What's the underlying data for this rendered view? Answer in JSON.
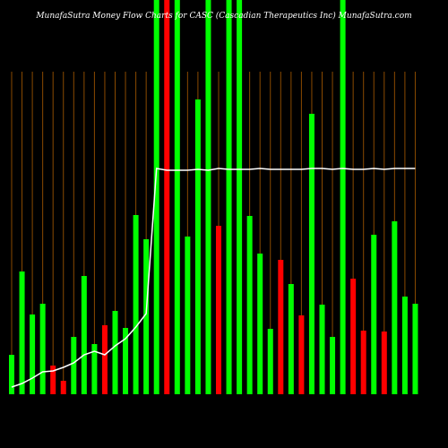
{
  "chart_data": {
    "type": "bar",
    "title": "MunafaSutra  Money Flow  Charts for CASC  (Cascadian  Therapeutics Inc) MunafaSutra.com",
    "ylim": [
      0,
      440
    ],
    "values": [
      44,
      137,
      89,
      101,
      32,
      15,
      64,
      132,
      56,
      77,
      93,
      74,
      200,
      173,
      440,
      440,
      440,
      176,
      329,
      440,
      188,
      440,
      440,
      199,
      157,
      73,
      150,
      123,
      88,
      313,
      100,
      64,
      440,
      129,
      71,
      178,
      70,
      193,
      109,
      101
    ],
    "colors": [
      "#00ff00",
      "#00ff00",
      "#00ff00",
      "#00ff00",
      "#ff0000",
      "#ff0000",
      "#00ff00",
      "#00ff00",
      "#00ff00",
      "#ff0000",
      "#00ff00",
      "#00ff00",
      "#00ff00",
      "#00ff00",
      "#00ff00",
      "#ff0000",
      "#00ff00",
      "#00ff00",
      "#00ff00",
      "#00ff00",
      "#ff0000",
      "#00ff00",
      "#00ff00",
      "#00ff00",
      "#00ff00",
      "#00ff00",
      "#ff0000",
      "#00ff00",
      "#ff0000",
      "#00ff00",
      "#00ff00",
      "#00ff00",
      "#00ff00",
      "#ff0000",
      "#ff0000",
      "#00ff00",
      "#ff0000",
      "#00ff00",
      "#00ff00",
      "#00ff00"
    ],
    "line_values": [
      8,
      12,
      18,
      25,
      26,
      30,
      35,
      44,
      48,
      44,
      54,
      62,
      75,
      90,
      252,
      250,
      250,
      250,
      251,
      250,
      252,
      251,
      251,
      251,
      252,
      251,
      251,
      251,
      251,
      252,
      252,
      251,
      252,
      251,
      251,
      252,
      251,
      252,
      252,
      252
    ],
    "line_color": "#ffffff"
  }
}
